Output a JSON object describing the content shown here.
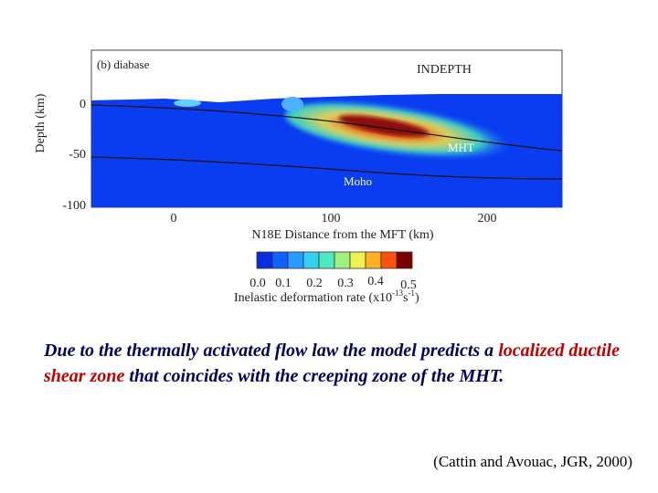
{
  "figure": {
    "panel_label": "(b) diabase",
    "site_label": "INDEPTH",
    "fault_label": "MHT",
    "moho_label": "Moho",
    "y_axis_label": "Depth (km)",
    "y_ticks": [
      "0",
      "-50",
      "-100"
    ],
    "x_ticks": [
      "0",
      "100",
      "200"
    ],
    "x_axis_label": "N18E Distance from the MFT (km)",
    "colorbar_ticks": [
      "0.0",
      "0.1",
      "0.2",
      "0.3",
      "0.4",
      "0.5"
    ],
    "colorbar_label": {
      "text": "Inelastic deformation rate (x10",
      "exp1": "-13",
      "unit": "s",
      "exp2": "-1",
      "close": ")"
    }
  },
  "caption": {
    "before": "Due to the thermally activated flow law the model predicts a ",
    "highlight": "localized ductile shear zone",
    "after": " that coincides with the creeping zone of the MHT."
  },
  "citation": "(Cattin and Avouac, JGR,  2000)"
}
